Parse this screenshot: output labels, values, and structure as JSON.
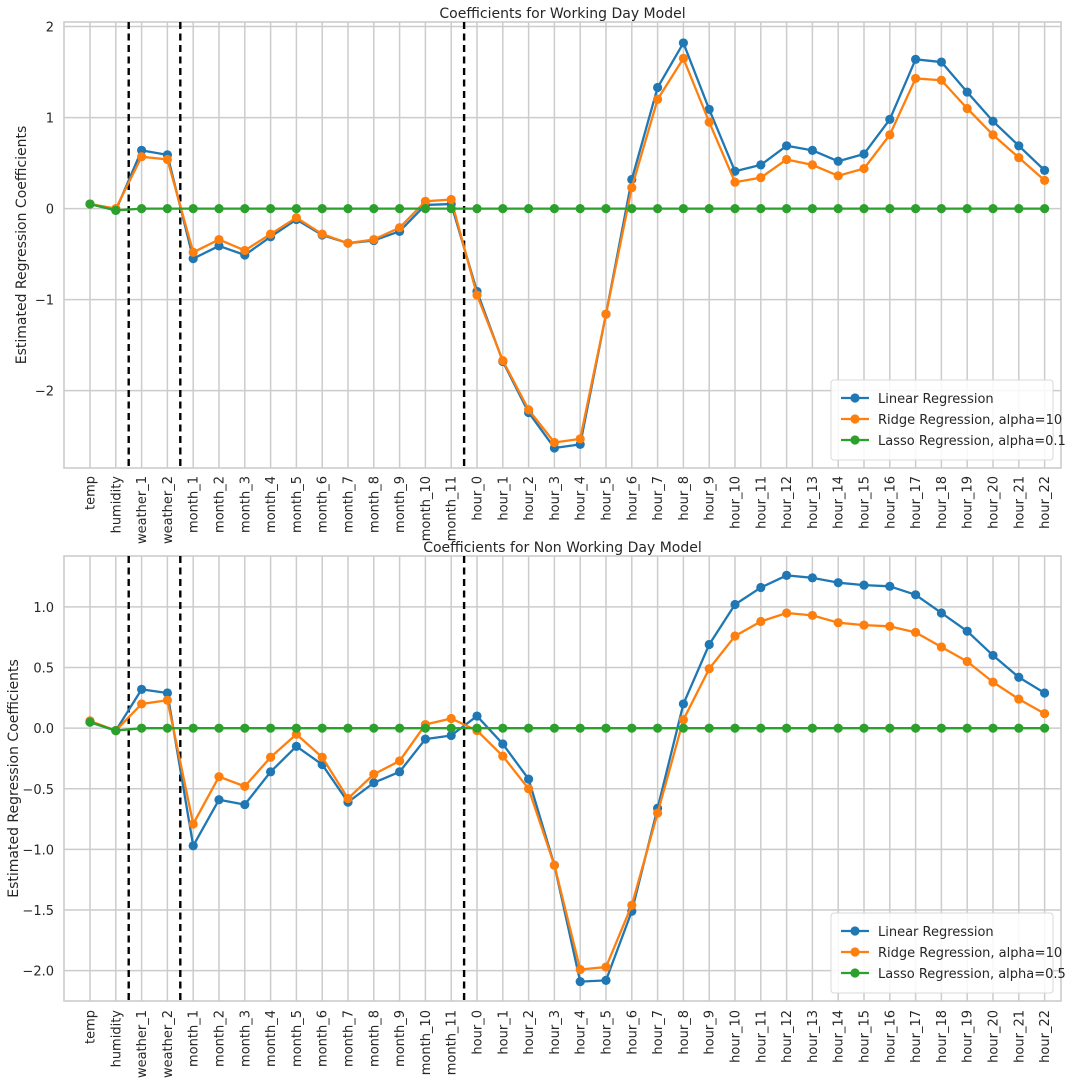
{
  "chart_data": [
    {
      "type": "line",
      "title": "Coefficients for Working Day Model",
      "ylabel": "Estimated Regression Coefficients",
      "xlabel": "",
      "categories": [
        "temp",
        "humidity",
        "weather_1",
        "weather_2",
        "month_1",
        "month_2",
        "month_3",
        "month_4",
        "month_5",
        "month_6",
        "month_7",
        "month_8",
        "month_9",
        "month_10",
        "month_11",
        "hour_0",
        "hour_1",
        "hour_2",
        "hour_3",
        "hour_4",
        "hour_5",
        "hour_6",
        "hour_7",
        "hour_8",
        "hour_9",
        "hour_10",
        "hour_11",
        "hour_12",
        "hour_13",
        "hour_14",
        "hour_15",
        "hour_16",
        "hour_17",
        "hour_18",
        "hour_19",
        "hour_20",
        "hour_21",
        "hour_22"
      ],
      "ylim": [
        -2.85,
        2.05
      ],
      "yticks": [
        {
          "value": 2,
          "label": "2"
        },
        {
          "value": 1,
          "label": "1"
        },
        {
          "value": 0,
          "label": "0"
        },
        {
          "value": -1,
          "label": "−1"
        },
        {
          "value": -2,
          "label": "−2"
        }
      ],
      "vlines_at_index": [
        1.5,
        3.5,
        14.5
      ],
      "grid": true,
      "legend_position": "lower-right",
      "series": [
        {
          "name": "Linear Regression",
          "color": "#1f77b4",
          "values": [
            0.05,
            -0.02,
            0.64,
            0.59,
            -0.55,
            -0.41,
            -0.51,
            -0.31,
            -0.12,
            -0.29,
            -0.38,
            -0.35,
            -0.25,
            0.04,
            0.05,
            -0.91,
            -1.68,
            -2.24,
            -2.63,
            -2.59,
            -1.16,
            0.32,
            1.33,
            1.82,
            1.09,
            0.41,
            0.48,
            0.69,
            0.64,
            0.52,
            0.6,
            0.98,
            1.64,
            1.61,
            1.28,
            0.96,
            0.69,
            0.42
          ]
        },
        {
          "name": "Ridge Regression, alpha=10",
          "color": "#ff7f0e",
          "values": [
            0.05,
            0.0,
            0.57,
            0.54,
            -0.48,
            -0.34,
            -0.46,
            -0.28,
            -0.1,
            -0.28,
            -0.38,
            -0.34,
            -0.21,
            0.08,
            0.1,
            -0.95,
            -1.67,
            -2.21,
            -2.57,
            -2.53,
            -1.16,
            0.23,
            1.2,
            1.65,
            0.95,
            0.29,
            0.34,
            0.54,
            0.48,
            0.36,
            0.44,
            0.81,
            1.43,
            1.41,
            1.1,
            0.81,
            0.56,
            0.31
          ]
        },
        {
          "name": "Lasso Regression, alpha=0.1",
          "color": "#2ca02c",
          "values": [
            0.05,
            -0.02,
            0,
            0,
            0,
            0,
            0,
            0,
            0,
            0,
            0,
            0,
            0,
            0,
            0,
            0,
            0,
            0,
            0,
            0,
            0,
            0,
            0,
            0,
            0,
            0,
            0,
            0,
            0,
            0,
            0,
            0,
            0,
            0,
            0,
            0,
            0,
            0
          ]
        }
      ]
    },
    {
      "type": "line",
      "title": "Coefficients for Non Working Day Model",
      "ylabel": "Estimated Regression Coefficients",
      "xlabel": "",
      "categories": [
        "temp",
        "humidity",
        "weather_1",
        "weather_2",
        "month_1",
        "month_2",
        "month_3",
        "month_4",
        "month_5",
        "month_6",
        "month_7",
        "month_8",
        "month_9",
        "month_10",
        "month_11",
        "hour_0",
        "hour_1",
        "hour_2",
        "hour_3",
        "hour_4",
        "hour_5",
        "hour_6",
        "hour_7",
        "hour_8",
        "hour_9",
        "hour_10",
        "hour_11",
        "hour_12",
        "hour_13",
        "hour_14",
        "hour_15",
        "hour_16",
        "hour_17",
        "hour_18",
        "hour_19",
        "hour_20",
        "hour_21",
        "hour_22"
      ],
      "ylim": [
        -2.25,
        1.42
      ],
      "yticks": [
        {
          "value": 1.0,
          "label": "1.0"
        },
        {
          "value": 0.5,
          "label": "0.5"
        },
        {
          "value": 0.0,
          "label": "0.0"
        },
        {
          "value": -0.5,
          "label": "−0.5"
        },
        {
          "value": -1.0,
          "label": "−1.0"
        },
        {
          "value": -1.5,
          "label": "−1.5"
        },
        {
          "value": -2.0,
          "label": "−2.0"
        }
      ],
      "vlines_at_index": [
        1.5,
        3.5,
        14.5
      ],
      "grid": true,
      "legend_position": "lower-right",
      "series": [
        {
          "name": "Linear Regression",
          "color": "#1f77b4",
          "values": [
            0.05,
            -0.02,
            0.32,
            0.29,
            -0.97,
            -0.59,
            -0.63,
            -0.36,
            -0.15,
            -0.3,
            -0.61,
            -0.45,
            -0.36,
            -0.09,
            -0.06,
            0.1,
            -0.13,
            -0.42,
            -1.13,
            -2.09,
            -2.08,
            -1.51,
            -0.66,
            0.2,
            0.69,
            1.02,
            1.16,
            1.26,
            1.24,
            1.2,
            1.18,
            1.17,
            1.1,
            0.95,
            0.8,
            0.6,
            0.42,
            0.29
          ]
        },
        {
          "name": "Ridge Regression, alpha=10",
          "color": "#ff7f0e",
          "values": [
            0.06,
            -0.02,
            0.2,
            0.23,
            -0.79,
            -0.4,
            -0.48,
            -0.24,
            -0.05,
            -0.24,
            -0.58,
            -0.38,
            -0.27,
            0.03,
            0.08,
            -0.02,
            -0.23,
            -0.5,
            -1.13,
            -1.99,
            -1.97,
            -1.46,
            -0.7,
            0.07,
            0.49,
            0.76,
            0.88,
            0.95,
            0.93,
            0.87,
            0.85,
            0.84,
            0.79,
            0.67,
            0.55,
            0.38,
            0.24,
            0.12
          ]
        },
        {
          "name": "Lasso Regression, alpha=0.5",
          "color": "#2ca02c",
          "values": [
            0.05,
            -0.02,
            0,
            0,
            0,
            0,
            0,
            0,
            0,
            0,
            0,
            0,
            0,
            0,
            0,
            0,
            0,
            0,
            0,
            0,
            0,
            0,
            0,
            0,
            0,
            0,
            0,
            0,
            0,
            0,
            0,
            0,
            0,
            0,
            0,
            0,
            0,
            0
          ]
        }
      ]
    }
  ]
}
